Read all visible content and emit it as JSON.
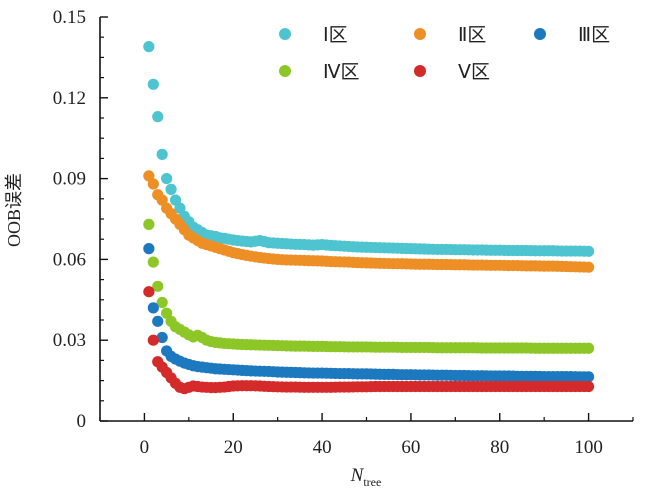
{
  "chart_data": {
    "type": "scatter",
    "title": "",
    "xlabel": "N",
    "xlabel_sub": "tree",
    "ylabel": "OOB误差",
    "xlim": [
      -10,
      110
    ],
    "ylim": [
      0,
      0.15
    ],
    "xticks": [
      0,
      20,
      40,
      60,
      80,
      100
    ],
    "yticks": [
      0,
      0.03,
      0.06,
      0.09,
      0.12,
      0.15
    ],
    "xtick_labels": [
      "0",
      "20",
      "40",
      "60",
      "80",
      "100"
    ],
    "ytick_labels": [
      "0",
      "0.03",
      "0.06",
      "0.09",
      "0.12",
      "0.15"
    ],
    "grid": false,
    "legend_position": "top-right",
    "series": [
      {
        "name": "Ⅰ区",
        "color": "#4dc4cf",
        "x": [
          1,
          2,
          3,
          4,
          5,
          6,
          7,
          8,
          9,
          10,
          11,
          12,
          13,
          14,
          15,
          16,
          17,
          18,
          19,
          20,
          22,
          24,
          26,
          28,
          30,
          32,
          34,
          36,
          38,
          40,
          42,
          44,
          46,
          48,
          50,
          52,
          54,
          56,
          58,
          60,
          62,
          64,
          66,
          68,
          70,
          72,
          74,
          76,
          78,
          80,
          82,
          84,
          86,
          88,
          90,
          92,
          94,
          96,
          98,
          100
        ],
        "y": [
          0.139,
          0.125,
          0.113,
          0.099,
          0.09,
          0.086,
          0.082,
          0.079,
          0.076,
          0.074,
          0.072,
          0.071,
          0.07,
          0.069,
          0.0688,
          0.0685,
          0.068,
          0.0678,
          0.0675,
          0.0672,
          0.0668,
          0.0665,
          0.067,
          0.0662,
          0.066,
          0.0658,
          0.0656,
          0.0655,
          0.0653,
          0.0655,
          0.0652,
          0.065,
          0.0648,
          0.0646,
          0.0645,
          0.0644,
          0.0643,
          0.0642,
          0.0641,
          0.064,
          0.0639,
          0.0638,
          0.0637,
          0.0637,
          0.0636,
          0.0636,
          0.0635,
          0.0635,
          0.0634,
          0.0634,
          0.0633,
          0.0633,
          0.0633,
          0.0632,
          0.0632,
          0.0632,
          0.0631,
          0.0631,
          0.0631,
          0.063
        ]
      },
      {
        "name": "Ⅱ区",
        "color": "#ed8f25",
        "x": [
          1,
          2,
          3,
          4,
          5,
          6,
          7,
          8,
          9,
          10,
          11,
          12,
          13,
          14,
          15,
          16,
          17,
          18,
          19,
          20,
          22,
          24,
          26,
          28,
          30,
          32,
          34,
          36,
          38,
          40,
          42,
          44,
          46,
          48,
          50,
          52,
          54,
          56,
          58,
          60,
          62,
          64,
          66,
          68,
          70,
          72,
          74,
          76,
          78,
          80,
          82,
          84,
          86,
          88,
          90,
          92,
          94,
          96,
          98,
          100
        ],
        "y": [
          0.091,
          0.088,
          0.084,
          0.082,
          0.079,
          0.077,
          0.075,
          0.073,
          0.071,
          0.069,
          0.068,
          0.067,
          0.066,
          0.0655,
          0.065,
          0.0645,
          0.064,
          0.0635,
          0.063,
          0.0625,
          0.0618,
          0.0612,
          0.0607,
          0.0603,
          0.06,
          0.0598,
          0.0597,
          0.0596,
          0.0595,
          0.0594,
          0.0592,
          0.0591,
          0.059,
          0.0588,
          0.0587,
          0.0586,
          0.0585,
          0.0584,
          0.0584,
          0.0583,
          0.0582,
          0.0582,
          0.0581,
          0.0581,
          0.058,
          0.058,
          0.0579,
          0.0579,
          0.0578,
          0.0578,
          0.0577,
          0.0577,
          0.0576,
          0.0576,
          0.0575,
          0.0575,
          0.0574,
          0.0573,
          0.0572,
          0.0571
        ]
      },
      {
        "name": "Ⅲ区",
        "color": "#1c78bf",
        "x": [
          1,
          2,
          3,
          4,
          5,
          6,
          7,
          8,
          9,
          10,
          11,
          12,
          13,
          14,
          15,
          16,
          17,
          18,
          19,
          20,
          22,
          24,
          26,
          28,
          30,
          32,
          34,
          36,
          38,
          40,
          42,
          44,
          46,
          48,
          50,
          52,
          54,
          56,
          58,
          60,
          62,
          64,
          66,
          68,
          70,
          72,
          74,
          76,
          78,
          80,
          82,
          84,
          86,
          88,
          90,
          92,
          94,
          96,
          98,
          100
        ],
        "y": [
          0.064,
          0.042,
          0.037,
          0.031,
          0.026,
          0.024,
          0.023,
          0.0222,
          0.0215,
          0.021,
          0.0205,
          0.0202,
          0.02,
          0.0198,
          0.0196,
          0.0194,
          0.0193,
          0.0192,
          0.0191,
          0.019,
          0.0188,
          0.0186,
          0.0185,
          0.0184,
          0.0182,
          0.0181,
          0.018,
          0.0179,
          0.0178,
          0.0178,
          0.0177,
          0.0176,
          0.0176,
          0.0175,
          0.0175,
          0.0174,
          0.0173,
          0.0173,
          0.0172,
          0.0172,
          0.0171,
          0.0171,
          0.017,
          0.017,
          0.0169,
          0.0169,
          0.0168,
          0.0168,
          0.0167,
          0.0167,
          0.0167,
          0.0166,
          0.0166,
          0.0166,
          0.0165,
          0.0165,
          0.0165,
          0.0165,
          0.0164,
          0.0164
        ]
      },
      {
        "name": "Ⅳ区",
        "color": "#8cc727",
        "x": [
          1,
          2,
          3,
          4,
          5,
          6,
          7,
          8,
          9,
          10,
          11,
          12,
          13,
          14,
          15,
          16,
          17,
          18,
          19,
          20,
          22,
          24,
          26,
          28,
          30,
          32,
          34,
          36,
          38,
          40,
          42,
          44,
          46,
          48,
          50,
          52,
          54,
          56,
          58,
          60,
          62,
          64,
          66,
          68,
          70,
          72,
          74,
          76,
          78,
          80,
          82,
          84,
          86,
          88,
          90,
          92,
          94,
          96,
          98,
          100
        ],
        "y": [
          0.073,
          0.059,
          0.05,
          0.044,
          0.04,
          0.037,
          0.035,
          0.034,
          0.033,
          0.032,
          0.0312,
          0.0318,
          0.031,
          0.03,
          0.0295,
          0.0292,
          0.029,
          0.0288,
          0.0287,
          0.0286,
          0.0284,
          0.0283,
          0.0282,
          0.0281,
          0.028,
          0.0279,
          0.0278,
          0.0278,
          0.0277,
          0.0277,
          0.0276,
          0.0276,
          0.0275,
          0.0275,
          0.0275,
          0.0274,
          0.0274,
          0.0274,
          0.0273,
          0.0273,
          0.0273,
          0.0273,
          0.0272,
          0.0272,
          0.0272,
          0.0272,
          0.0272,
          0.0271,
          0.0271,
          0.0271,
          0.0271,
          0.0271,
          0.0271,
          0.027,
          0.027,
          0.027,
          0.027,
          0.027,
          0.027,
          0.027
        ]
      },
      {
        "name": "Ⅴ区",
        "color": "#d42a2a",
        "x": [
          1,
          2,
          3,
          4,
          5,
          6,
          7,
          8,
          9,
          10,
          11,
          12,
          13,
          14,
          15,
          16,
          17,
          18,
          19,
          20,
          22,
          24,
          26,
          28,
          30,
          32,
          34,
          36,
          38,
          40,
          42,
          44,
          46,
          48,
          50,
          52,
          54,
          56,
          58,
          60,
          62,
          64,
          66,
          68,
          70,
          72,
          74,
          76,
          78,
          80,
          82,
          84,
          86,
          88,
          90,
          92,
          94,
          96,
          98,
          100
        ],
        "y": [
          0.048,
          0.03,
          0.022,
          0.02,
          0.018,
          0.016,
          0.014,
          0.0125,
          0.012,
          0.0125,
          0.013,
          0.0128,
          0.0126,
          0.0125,
          0.0124,
          0.0124,
          0.0125,
          0.0126,
          0.0128,
          0.013,
          0.0131,
          0.0131,
          0.013,
          0.0128,
          0.0127,
          0.0126,
          0.0126,
          0.0125,
          0.0125,
          0.0125,
          0.0125,
          0.0126,
          0.0126,
          0.0127,
          0.0127,
          0.0128,
          0.0128,
          0.0128,
          0.0128,
          0.0128,
          0.0128,
          0.0128,
          0.0128,
          0.0128,
          0.0128,
          0.0128,
          0.0128,
          0.0128,
          0.0128,
          0.0128,
          0.0128,
          0.0128,
          0.0128,
          0.0128,
          0.0128,
          0.0128,
          0.0128,
          0.0128,
          0.0128,
          0.0128
        ]
      }
    ]
  }
}
